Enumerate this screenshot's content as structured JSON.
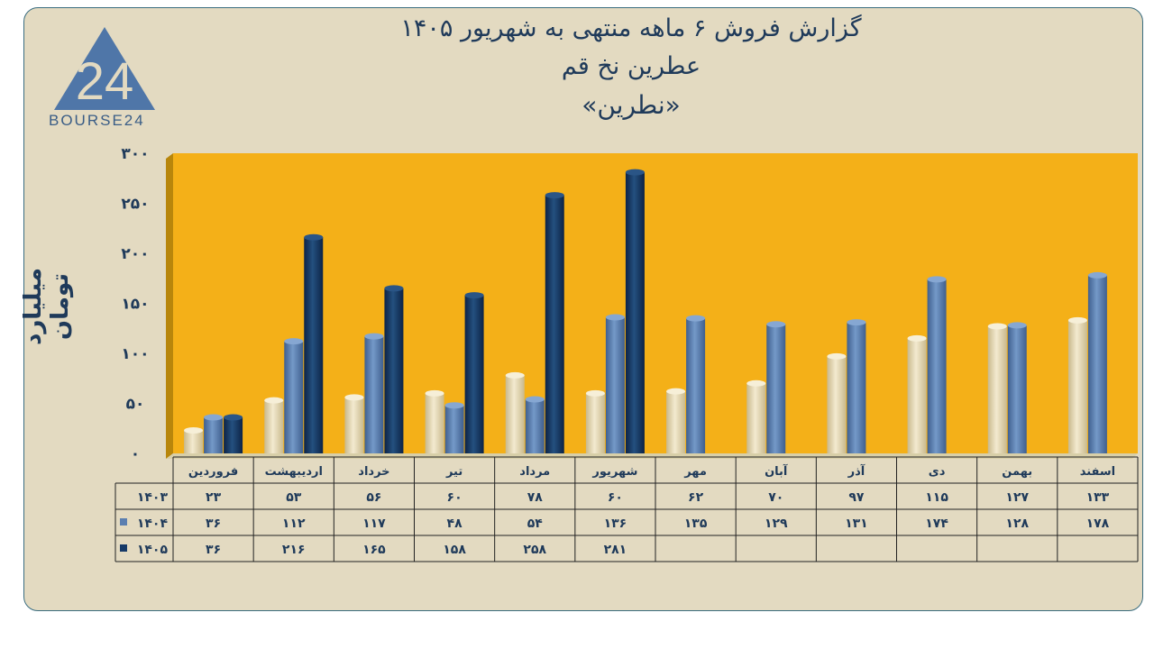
{
  "titles": {
    "line1": "گزارش  فروش ۶ ماهه منتهی به شهریور ۱۴۰۵",
    "line2": "عطرین نخ قم",
    "line3": "«نطرین»"
  },
  "logo": {
    "text": "BOURSE24",
    "mark": "24"
  },
  "colors": {
    "series1403": "#e8dcb4",
    "series1404": "#5b7fb0",
    "series1405": "#163a68",
    "plot_bg": "#f4b018",
    "card_bg": "#e3dac1"
  },
  "chart_data": {
    "type": "bar",
    "ylabel": "میلیارد تومان",
    "ylim": [
      0,
      300
    ],
    "yticks": [
      "۰",
      "۵۰",
      "۱۰۰",
      "۱۵۰",
      "۲۰۰",
      "۲۵۰",
      "۳۰۰"
    ],
    "categories": [
      "فروردین",
      "اردیبهشت",
      "خرداد",
      "تیر",
      "مرداد",
      "شهریور",
      "مهر",
      "آبان",
      "آذر",
      "دی",
      "بهمن",
      "اسفند"
    ],
    "series": [
      {
        "name": "۱۴۰۳",
        "values": [
          23,
          53,
          56,
          60,
          78,
          60,
          62,
          70,
          97,
          115,
          127,
          133
        ],
        "labels": [
          "۲۳",
          "۵۳",
          "۵۶",
          "۶۰",
          "۷۸",
          "۶۰",
          "۶۲",
          "۷۰",
          "۹۷",
          "۱۱۵",
          "۱۲۷",
          "۱۳۳"
        ]
      },
      {
        "name": "۱۴۰۴",
        "values": [
          36,
          112,
          117,
          48,
          54,
          136,
          135,
          129,
          131,
          174,
          128,
          178
        ],
        "labels": [
          "۳۶",
          "۱۱۲",
          "۱۱۷",
          "۴۸",
          "۵۴",
          "۱۳۶",
          "۱۳۵",
          "۱۲۹",
          "۱۳۱",
          "۱۷۴",
          "۱۲۸",
          "۱۷۸"
        ]
      },
      {
        "name": "۱۴۰۵",
        "values": [
          36,
          216,
          165,
          158,
          258,
          281,
          null,
          null,
          null,
          null,
          null,
          null
        ],
        "labels": [
          "۳۶",
          "۲۱۶",
          "۱۶۵",
          "۱۵۸",
          "۲۵۸",
          "۲۸۱",
          "",
          "",
          "",
          "",
          "",
          ""
        ]
      }
    ]
  }
}
